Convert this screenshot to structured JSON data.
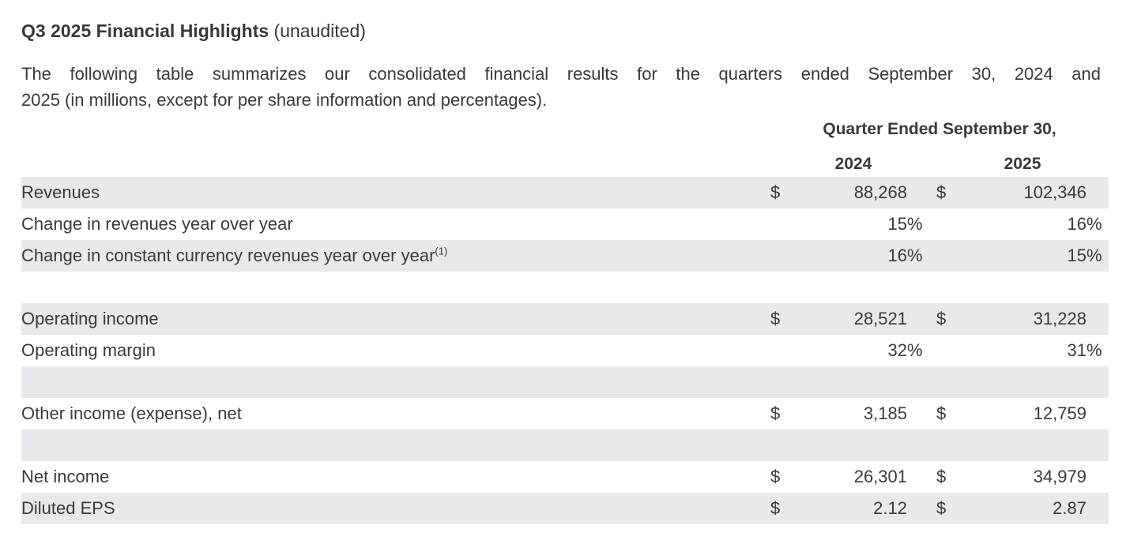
{
  "document": {
    "title": {
      "bold": "Q3 2025 Financial Highlights",
      "suffix": " (unaudited)"
    },
    "intro": {
      "line1": "The following table summarizes our consolidated financial results for the quarters ended September 30, 2024 and",
      "line2": "2025 (in millions, except for per share information and percentages)."
    }
  },
  "table": {
    "header": {
      "group_label": "Quarter Ended September 30,",
      "year_2024": "2024",
      "year_2025": "2025"
    },
    "symbols": {
      "currency": "$",
      "percent": "%"
    },
    "colors": {
      "row_shade": "#e8e9ec",
      "text": "#3a3a3a",
      "background": "#ffffff"
    },
    "rows": [
      {
        "label": "Revenues",
        "type": "currency",
        "shaded": true,
        "y2024": "88,268",
        "y2025": "102,346"
      },
      {
        "label": "Change in revenues year over year",
        "type": "percent",
        "shaded": false,
        "y2024": "15",
        "y2025": "16"
      },
      {
        "label": "Change in constant currency revenues year over year",
        "label_superscript": "(1)",
        "type": "percent",
        "shaded": true,
        "y2024": "16",
        "y2025": "15"
      },
      {
        "label": "",
        "type": "spacer",
        "shaded": false
      },
      {
        "label": "Operating income",
        "type": "currency",
        "shaded": true,
        "y2024": "28,521",
        "y2025": "31,228"
      },
      {
        "label": "Operating margin",
        "type": "percent",
        "shaded": false,
        "y2024": "32",
        "y2025": "31"
      },
      {
        "label": "",
        "type": "spacer",
        "shaded": true
      },
      {
        "label": "Other income (expense), net",
        "type": "currency",
        "shaded": false,
        "y2024": "3,185",
        "y2025": "12,759"
      },
      {
        "label": "",
        "type": "spacer",
        "shaded": true
      },
      {
        "label": "Net income",
        "type": "currency",
        "shaded": false,
        "y2024": "26,301",
        "y2025": "34,979"
      },
      {
        "label": "Diluted EPS",
        "type": "currency",
        "shaded": true,
        "y2024": "2.12",
        "y2025": "2.87"
      }
    ]
  }
}
